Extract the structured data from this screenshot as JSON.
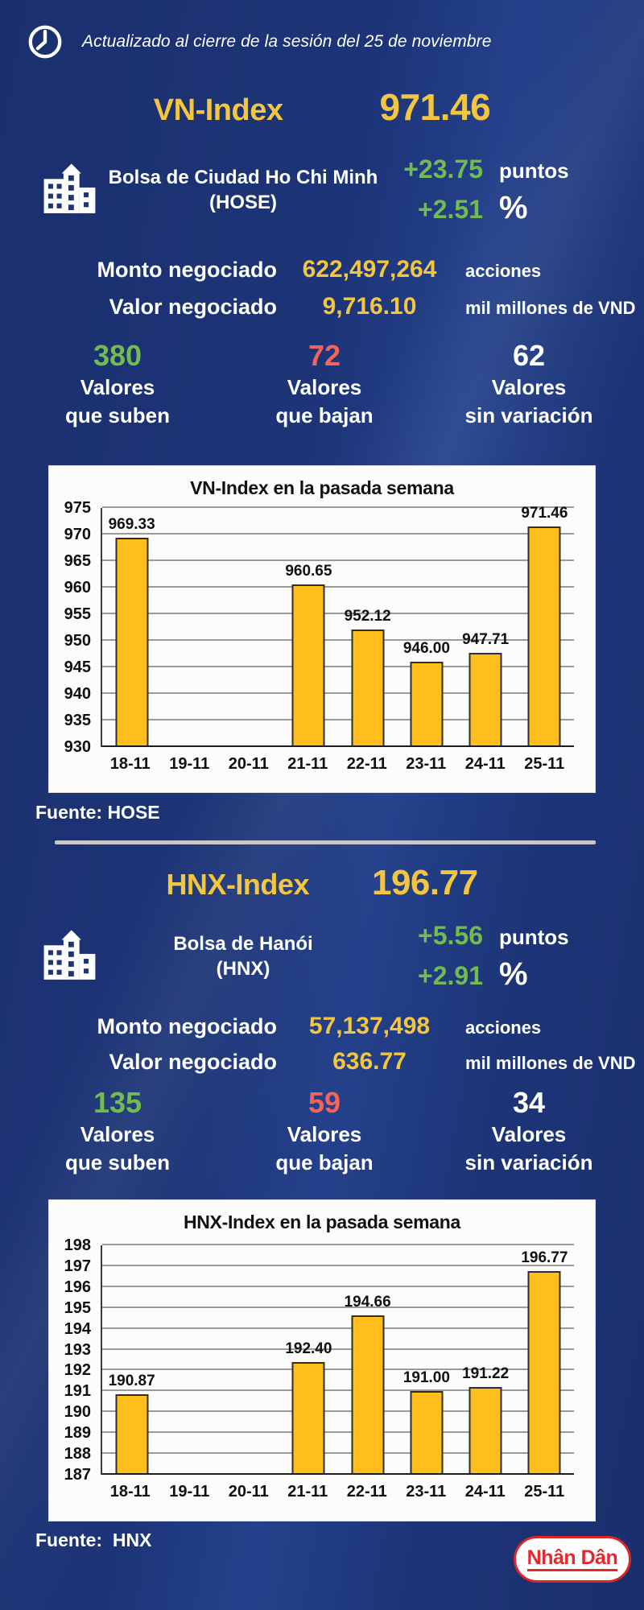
{
  "header": {
    "updated_text": "Actualizado al cierre de la sesión del 25 de noviembre"
  },
  "vn": {
    "index_name": "VN-Index",
    "index_value": "971.46",
    "exchange_name": "Bolsa de Ciudad Ho Chi Minh",
    "exchange_code": "(HOSE)",
    "change_points": "+23.75",
    "points_label": "puntos",
    "change_percent": "+2.51",
    "percent_label": "%",
    "volume_label": "Monto negociado",
    "volume_value": "622,497,264",
    "volume_unit": "acciones",
    "value_label": "Valor negociado",
    "value_value": "9,716.10",
    "value_unit": "mil millones de VND",
    "advancers": {
      "value": "380",
      "line1": "Valores",
      "line2": "que suben"
    },
    "decliners": {
      "value": "72",
      "line1": "Valores",
      "line2": "que bajan"
    },
    "unchanged": {
      "value": "62",
      "line1": "Valores",
      "line2": "sin variación"
    },
    "source": "Fuente: HOSE"
  },
  "hnx": {
    "index_name": "HNX-Index",
    "index_value": "196.77",
    "exchange_name": "Bolsa de Hanói",
    "exchange_code": "(HNX)",
    "change_points": "+5.56",
    "points_label": "puntos",
    "change_percent": "+2.91",
    "percent_label": "%",
    "volume_label": "Monto negociado",
    "volume_value": "57,137,498",
    "volume_unit": "acciones",
    "value_label": "Valor negociado",
    "value_value": "636.77",
    "value_unit": "mil millones de VND",
    "advancers": {
      "value": "135",
      "line1": "Valores",
      "line2": "que suben"
    },
    "decliners": {
      "value": "59",
      "line1": "Valores",
      "line2": "que bajan"
    },
    "unchanged": {
      "value": "34",
      "line1": "Valores",
      "line2": "sin variación"
    },
    "source": "Fuente:  HNX"
  },
  "logo": {
    "text": "Nhân Dân"
  },
  "icons": {
    "clock": "clock-icon",
    "building": "building-icon"
  },
  "colors": {
    "background": "#1d3578",
    "accent_yellow": "#f2c63e",
    "positive_green": "#72bb4f",
    "negative_red": "#f3655a",
    "text_white": "#ffffff",
    "bar_fill": "#ffbe1b",
    "logo_red": "#e3282e",
    "divider_gray": "#c7c7cc"
  },
  "chart_data": [
    {
      "type": "bar",
      "title": "VN-Index en la pasada semana",
      "categories": [
        "18-11",
        "19-11",
        "20-11",
        "21-11",
        "22-11",
        "23-11",
        "24-11",
        "25-11"
      ],
      "values": [
        969.33,
        null,
        null,
        960.65,
        952.12,
        946.0,
        947.71,
        971.46
      ],
      "value_labels": [
        "969.33",
        null,
        null,
        "960.65",
        "952.12",
        "946.00",
        "947.71",
        "971.46"
      ],
      "xlabel": "",
      "ylabel": "",
      "ylim": [
        930,
        975
      ],
      "ytick_step": 5,
      "grid": true,
      "legend": false,
      "bar_color": "#ffbe1b"
    },
    {
      "type": "bar",
      "title": "HNX-Index en la pasada semana",
      "categories": [
        "18-11",
        "19-11",
        "20-11",
        "21-11",
        "22-11",
        "23-11",
        "24-11",
        "25-11"
      ],
      "values": [
        190.87,
        null,
        null,
        192.4,
        194.66,
        191.0,
        191.22,
        196.77
      ],
      "value_labels": [
        "190.87",
        null,
        null,
        "192.40",
        "194.66",
        "191.00",
        "191.22",
        "196.77"
      ],
      "xlabel": "",
      "ylabel": "",
      "ylim": [
        187,
        198
      ],
      "ytick_step": 1,
      "grid": true,
      "legend": false,
      "bar_color": "#ffbe1b"
    }
  ]
}
